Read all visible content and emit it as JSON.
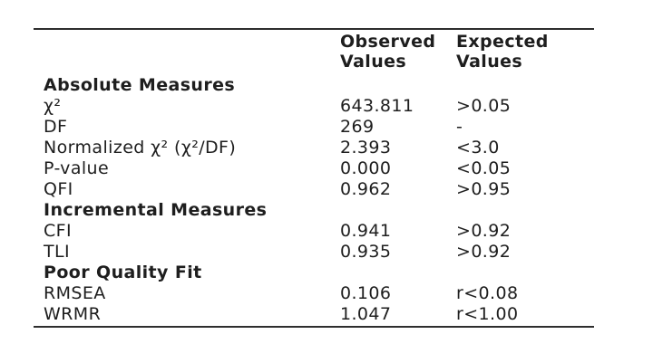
{
  "page": {
    "background_color": "#ffffff",
    "text_color": "#1e1e1e",
    "rule_color": "#2e2e2e"
  },
  "table": {
    "header": {
      "observed": "Observed\nValues",
      "expected": "Expected\nValues"
    },
    "rows": [
      {
        "type": "section",
        "label": "Absolute Measures"
      },
      {
        "type": "data",
        "label": "χ²",
        "observed": "643.811",
        "expected": ">0.05"
      },
      {
        "type": "data",
        "label": "DF",
        "observed": "269",
        "expected": "-"
      },
      {
        "type": "data",
        "label": "Normalized χ² (χ²/DF)",
        "observed": "2.393",
        "expected": "<3.0"
      },
      {
        "type": "data",
        "label": "P-value",
        "observed": "0.000",
        "expected": "<0.05"
      },
      {
        "type": "data",
        "label": "QFI",
        "observed": "0.962",
        "expected": ">0.95"
      },
      {
        "type": "section",
        "label": "Incremental Measures"
      },
      {
        "type": "data",
        "label": "CFI",
        "observed": "0.941",
        "expected": ">0.92"
      },
      {
        "type": "data",
        "label": "TLI",
        "observed": "0.935",
        "expected": ">0.92"
      },
      {
        "type": "section",
        "label": "Poor Quality Fit"
      },
      {
        "type": "data",
        "label": "RMSEA",
        "observed": "0.106",
        "expected": "r<0.08"
      },
      {
        "type": "data",
        "label": "WRMR",
        "observed": "1.047",
        "expected": "r<1.00"
      }
    ]
  }
}
